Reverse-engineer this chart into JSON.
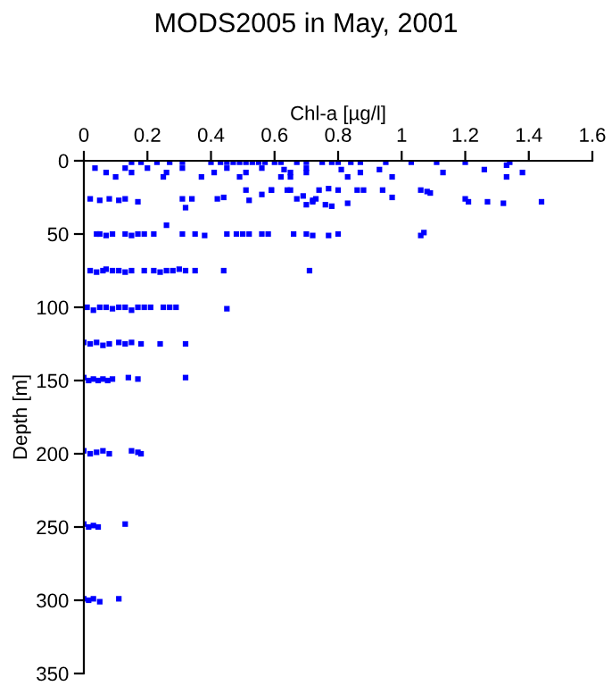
{
  "chart_data": {
    "type": "scatter",
    "title": "MODS2005 in May, 2001",
    "xlabel": "Chl-a [µg/l]",
    "ylabel": "Depth [m]",
    "xlim": [
      0,
      1.6
    ],
    "xticks": [
      0,
      0.2,
      0.4,
      0.6,
      0.8,
      1,
      1.2,
      1.4,
      1.6
    ],
    "ylim": [
      350,
      0
    ],
    "yticks": [
      0,
      50,
      100,
      150,
      200,
      250,
      300,
      350
    ],
    "grid": false,
    "legend": false,
    "marker": "square",
    "series": [
      {
        "color": "#0000ff",
        "x": [
          0.15,
          0.18,
          0.23,
          0.27,
          0.31,
          0.4,
          0.43,
          0.45,
          0.47,
          0.49,
          0.51,
          0.53,
          0.55,
          0.57,
          0.6,
          0.62,
          0.67,
          0.7,
          0.75,
          0.78,
          0.8,
          0.84,
          0.87,
          0.95,
          1.03,
          1.11,
          1.2,
          1.34,
          1.33,
          0.035,
          0.07,
          0.1,
          0.13,
          0.15,
          0.2,
          0.25,
          0.26,
          0.31,
          0.37,
          0.41,
          0.45,
          0.49,
          0.51,
          0.56,
          0.62,
          0.65,
          0.7,
          0.63,
          0.65,
          0.7,
          0.81,
          0.83,
          0.87,
          0.93,
          0.97,
          1.13,
          1.26,
          1.33,
          1.38,
          0.02,
          0.05,
          0.08,
          0.11,
          0.13,
          0.17,
          0.31,
          0.32,
          0.34,
          0.42,
          0.44,
          0.51,
          0.52,
          0.56,
          0.59,
          0.65,
          0.69,
          0.72,
          0.73,
          0.77,
          0.78,
          0.59,
          0.64,
          0.67,
          0.7,
          0.72,
          0.74,
          0.76,
          0.8,
          0.83,
          0.86,
          0.88,
          0.94,
          0.97,
          1.06,
          1.08,
          1.09,
          1.2,
          1.21,
          1.27,
          1.32,
          1.44,
          0.04,
          0.05,
          0.07,
          0.09,
          0.13,
          0.15,
          0.17,
          0.19,
          0.22,
          0.26,
          0.31,
          0.35,
          0.38,
          0.45,
          0.48,
          0.5,
          0.52,
          0.56,
          0.7,
          0.77,
          0.58,
          0.66,
          0.72,
          0.8,
          1.06,
          1.07,
          0.02,
          0.04,
          0.06,
          0.07,
          0.09,
          0.11,
          0.13,
          0.15,
          0.19,
          0.22,
          0.24,
          0.26,
          0.28,
          0.3,
          0.32,
          0.35,
          0.44,
          0.71,
          0.01,
          0.03,
          0.05,
          0.07,
          0.09,
          0.11,
          0.13,
          0.15,
          0.17,
          0.19,
          0.21,
          0.25,
          0.27,
          0.29,
          0.45,
          0.0,
          0.02,
          0.04,
          0.06,
          0.08,
          0.11,
          0.13,
          0.15,
          0.18,
          0.24,
          0.32,
          0.0,
          0.015,
          0.03,
          0.045,
          0.06,
          0.075,
          0.09,
          0.14,
          0.17,
          0.32,
          0.0,
          0.02,
          0.04,
          0.06,
          0.08,
          0.15,
          0.17,
          0.18,
          0.0,
          0.015,
          0.03,
          0.045,
          0.13,
          0.0,
          0.015,
          0.03,
          0.05,
          0.11
        ],
        "values": [
          1,
          1,
          1,
          1,
          1,
          1,
          1,
          1,
          1,
          1,
          1,
          1,
          1,
          1,
          1,
          1,
          1,
          1,
          1,
          1,
          1,
          1,
          1,
          1,
          1,
          1,
          1,
          1,
          3,
          5,
          8,
          11,
          5,
          8,
          5,
          11,
          8,
          5,
          11,
          8,
          5,
          11,
          8,
          5,
          11,
          8,
          5,
          6,
          11,
          8,
          6,
          11,
          8,
          6,
          11,
          8,
          6,
          11,
          8,
          26,
          27,
          26,
          27,
          26,
          28,
          26,
          32,
          26,
          26,
          25,
          20,
          27,
          23,
          20,
          20,
          24,
          28,
          26,
          19,
          31,
          20,
          20,
          26,
          30,
          27,
          20,
          30,
          20,
          29,
          20,
          20,
          20,
          25,
          20,
          21,
          22,
          26,
          28,
          28,
          29,
          28,
          50,
          50,
          51,
          50,
          50,
          51,
          50,
          50,
          50,
          44,
          50,
          50,
          51,
          50,
          50,
          50,
          50,
          50,
          50,
          51,
          50,
          50,
          51,
          50,
          51,
          49,
          75,
          76,
          75,
          74,
          75,
          75,
          76,
          75,
          75,
          75,
          76,
          75,
          75,
          74,
          75,
          75,
          75,
          75,
          100,
          102,
          100,
          100,
          101,
          100,
          100,
          102,
          100,
          100,
          100,
          100,
          100,
          100,
          101,
          124,
          125,
          124,
          126,
          125,
          124,
          125,
          124,
          125,
          125,
          125,
          148,
          150,
          149,
          150,
          149,
          150,
          149,
          148,
          149,
          148,
          198,
          200,
          199,
          198,
          200,
          198,
          199,
          200,
          248,
          250,
          249,
          250,
          248,
          299,
          300,
          299,
          301,
          299
        ]
      }
    ]
  }
}
